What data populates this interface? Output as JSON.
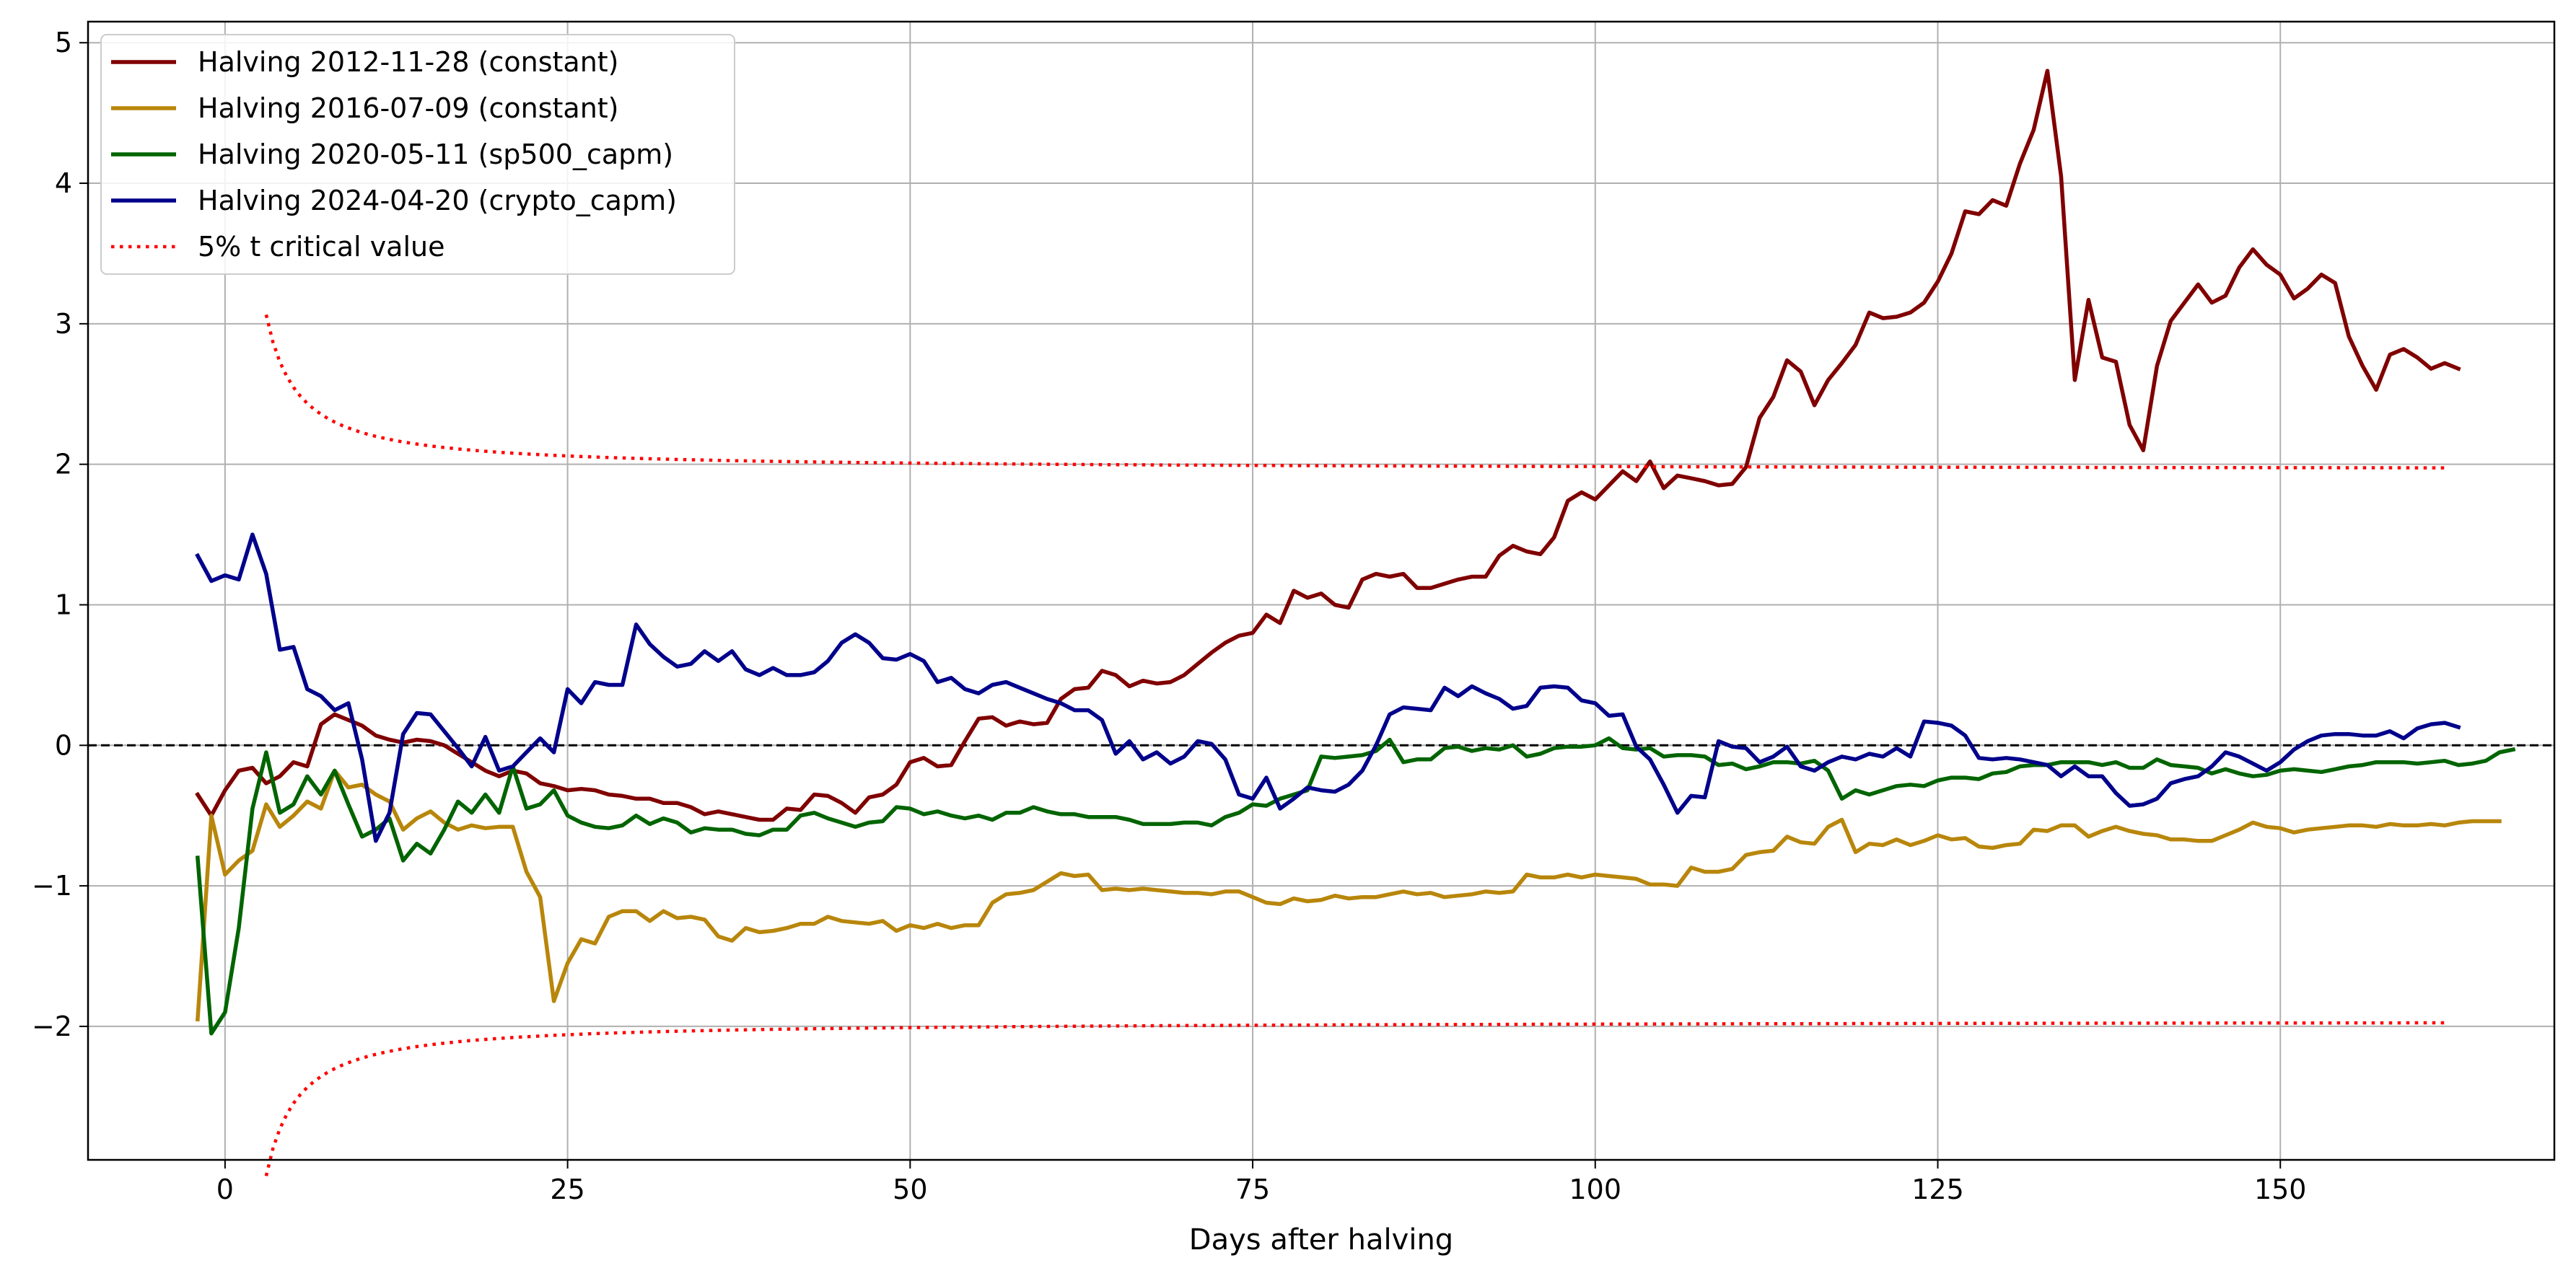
{
  "chart_data": {
    "type": "line",
    "title": "",
    "xlabel": "Days after halving",
    "ylabel": "",
    "xlim": [
      -10,
      170
    ],
    "ylim": [
      -2.95,
      5.15
    ],
    "xticks": [
      0,
      25,
      50,
      75,
      100,
      125,
      150
    ],
    "yticks": [
      -2,
      -1,
      0,
      1,
      2,
      3,
      4,
      5
    ],
    "tick_labels_x": [
      "0",
      "25",
      "50",
      "75",
      "100",
      "125",
      "150"
    ],
    "tick_labels_y": [
      "−2",
      "−1",
      "0",
      "1",
      "2",
      "3",
      "4",
      "5"
    ],
    "grid": true,
    "legend_position": "top-left",
    "zero_line": {
      "y": 0,
      "color": "#000000",
      "style": "dashed"
    },
    "series": [
      {
        "name": "Halving 2012-11-28 (constant)",
        "color": "#800000",
        "style": "solid",
        "x_start": -2,
        "values": [
          -0.35,
          -0.5,
          -0.32,
          -0.18,
          -0.16,
          -0.27,
          -0.22,
          -0.12,
          -0.15,
          0.15,
          0.22,
          0.18,
          0.14,
          0.07,
          0.04,
          0.02,
          0.04,
          0.03,
          0.0,
          -0.06,
          -0.12,
          -0.18,
          -0.22,
          -0.18,
          -0.2,
          -0.27,
          -0.29,
          -0.32,
          -0.31,
          -0.32,
          -0.35,
          -0.36,
          -0.38,
          -0.38,
          -0.41,
          -0.41,
          -0.44,
          -0.49,
          -0.47,
          -0.49,
          -0.51,
          -0.53,
          -0.53,
          -0.45,
          -0.46,
          -0.35,
          -0.36,
          -0.41,
          -0.48,
          -0.37,
          -0.35,
          -0.28,
          -0.12,
          -0.09,
          -0.15,
          -0.14,
          0.03,
          0.19,
          0.2,
          0.14,
          0.17,
          0.15,
          0.16,
          0.33,
          0.4,
          0.41,
          0.53,
          0.5,
          0.42,
          0.46,
          0.44,
          0.45,
          0.5,
          0.58,
          0.66,
          0.73,
          0.78,
          0.8,
          0.93,
          0.87,
          1.1,
          1.05,
          1.08,
          1.0,
          0.98,
          1.18,
          1.22,
          1.2,
          1.22,
          1.12,
          1.12,
          1.15,
          1.18,
          1.2,
          1.2,
          1.35,
          1.42,
          1.38,
          1.36,
          1.48,
          1.74,
          1.8,
          1.75,
          1.85,
          1.95,
          1.88,
          2.02,
          1.83,
          1.92,
          1.9,
          1.88,
          1.85,
          1.86,
          1.98,
          2.33,
          2.48,
          2.74,
          2.66,
          2.42,
          2.6,
          2.72,
          2.85,
          3.08,
          3.04,
          3.05,
          3.08,
          3.15,
          3.3,
          3.5,
          3.8,
          3.78,
          3.88,
          3.84,
          4.14,
          4.38,
          4.8,
          4.05,
          2.6,
          3.17,
          2.76,
          2.73,
          2.28,
          2.1,
          2.7,
          3.02,
          3.15,
          3.28,
          3.15,
          3.2,
          3.4,
          3.53,
          3.42,
          3.35,
          3.18,
          3.25,
          3.35,
          3.29,
          2.91,
          2.7,
          2.53,
          2.78,
          2.82,
          2.76,
          2.68,
          2.72,
          2.68
        ]
      },
      {
        "name": "Halving 2016-07-09 (constant)",
        "color": "#b8860b",
        "style": "solid",
        "x_start": -2,
        "values": [
          -1.95,
          -0.5,
          -0.92,
          -0.82,
          -0.75,
          -0.42,
          -0.58,
          -0.5,
          -0.4,
          -0.45,
          -0.18,
          -0.3,
          -0.28,
          -0.35,
          -0.4,
          -0.6,
          -0.52,
          -0.47,
          -0.55,
          -0.6,
          -0.57,
          -0.59,
          -0.58,
          -0.58,
          -0.9,
          -1.08,
          -1.82,
          -1.55,
          -1.38,
          -1.41,
          -1.22,
          -1.18,
          -1.18,
          -1.25,
          -1.18,
          -1.23,
          -1.22,
          -1.24,
          -1.36,
          -1.39,
          -1.3,
          -1.33,
          -1.32,
          -1.3,
          -1.27,
          -1.27,
          -1.22,
          -1.25,
          -1.26,
          -1.27,
          -1.25,
          -1.32,
          -1.28,
          -1.3,
          -1.27,
          -1.3,
          -1.28,
          -1.28,
          -1.12,
          -1.06,
          -1.05,
          -1.03,
          -0.97,
          -0.91,
          -0.93,
          -0.92,
          -1.03,
          -1.02,
          -1.03,
          -1.02,
          -1.03,
          -1.04,
          -1.05,
          -1.05,
          -1.06,
          -1.04,
          -1.04,
          -1.08,
          -1.12,
          -1.13,
          -1.09,
          -1.11,
          -1.1,
          -1.07,
          -1.09,
          -1.08,
          -1.08,
          -1.06,
          -1.04,
          -1.06,
          -1.05,
          -1.08,
          -1.07,
          -1.06,
          -1.04,
          -1.05,
          -1.04,
          -0.92,
          -0.94,
          -0.94,
          -0.92,
          -0.94,
          -0.92,
          -0.93,
          -0.94,
          -0.95,
          -0.99,
          -0.99,
          -1.0,
          -0.87,
          -0.9,
          -0.9,
          -0.88,
          -0.78,
          -0.76,
          -0.75,
          -0.65,
          -0.69,
          -0.7,
          -0.58,
          -0.53,
          -0.76,
          -0.7,
          -0.71,
          -0.67,
          -0.71,
          -0.68,
          -0.64,
          -0.67,
          -0.66,
          -0.72,
          -0.73,
          -0.71,
          -0.7,
          -0.6,
          -0.61,
          -0.57,
          -0.57,
          -0.65,
          -0.61,
          -0.58,
          -0.61,
          -0.63,
          -0.64,
          -0.67,
          -0.67,
          -0.68,
          -0.68,
          -0.64,
          -0.6,
          -0.55,
          -0.58,
          -0.59,
          -0.62,
          -0.6,
          -0.59,
          -0.58,
          -0.57,
          -0.57,
          -0.58,
          -0.56,
          -0.57,
          -0.57,
          -0.56,
          -0.57,
          -0.55,
          -0.54,
          -0.54,
          -0.54
        ]
      },
      {
        "name": "Halving 2020-05-11 (sp500_capm)",
        "color": "#006400",
        "style": "solid",
        "x_start": -2,
        "values": [
          -0.8,
          -2.05,
          -1.9,
          -1.3,
          -0.45,
          -0.05,
          -0.48,
          -0.42,
          -0.22,
          -0.35,
          -0.18,
          -0.42,
          -0.65,
          -0.6,
          -0.52,
          -0.82,
          -0.7,
          -0.77,
          -0.6,
          -0.4,
          -0.48,
          -0.35,
          -0.48,
          -0.15,
          -0.45,
          -0.42,
          -0.32,
          -0.5,
          -0.55,
          -0.58,
          -0.59,
          -0.57,
          -0.5,
          -0.56,
          -0.52,
          -0.55,
          -0.62,
          -0.59,
          -0.6,
          -0.6,
          -0.63,
          -0.64,
          -0.6,
          -0.6,
          -0.5,
          -0.48,
          -0.52,
          -0.55,
          -0.58,
          -0.55,
          -0.54,
          -0.44,
          -0.45,
          -0.49,
          -0.47,
          -0.5,
          -0.52,
          -0.5,
          -0.53,
          -0.48,
          -0.48,
          -0.44,
          -0.47,
          -0.49,
          -0.49,
          -0.51,
          -0.51,
          -0.51,
          -0.53,
          -0.56,
          -0.56,
          -0.56,
          -0.55,
          -0.55,
          -0.57,
          -0.51,
          -0.48,
          -0.42,
          -0.43,
          -0.38,
          -0.35,
          -0.32,
          -0.08,
          -0.09,
          -0.08,
          -0.07,
          -0.04,
          0.04,
          -0.12,
          -0.1,
          -0.1,
          -0.02,
          -0.01,
          -0.04,
          -0.02,
          -0.03,
          0.0,
          -0.08,
          -0.06,
          -0.02,
          -0.01,
          -0.01,
          0.0,
          0.05,
          -0.02,
          -0.03,
          -0.02,
          -0.08,
          -0.07,
          -0.07,
          -0.08,
          -0.14,
          -0.13,
          -0.17,
          -0.15,
          -0.12,
          -0.12,
          -0.13,
          -0.11,
          -0.18,
          -0.38,
          -0.32,
          -0.35,
          -0.32,
          -0.29,
          -0.28,
          -0.29,
          -0.25,
          -0.23,
          -0.23,
          -0.24,
          -0.2,
          -0.19,
          -0.15,
          -0.14,
          -0.14,
          -0.12,
          -0.12,
          -0.12,
          -0.14,
          -0.12,
          -0.16,
          -0.16,
          -0.1,
          -0.14,
          -0.15,
          -0.16,
          -0.2,
          -0.17,
          -0.2,
          -0.22,
          -0.21,
          -0.18,
          -0.17,
          -0.18,
          -0.19,
          -0.17,
          -0.15,
          -0.14,
          -0.12,
          -0.12,
          -0.12,
          -0.13,
          -0.12,
          -0.11,
          -0.14,
          -0.13,
          -0.11,
          -0.05,
          -0.03
        ]
      },
      {
        "name": "Halving 2024-04-20 (crypto_capm)",
        "color": "#00008b",
        "style": "solid",
        "x_start": -2,
        "values": [
          1.35,
          1.17,
          1.21,
          1.18,
          1.5,
          1.22,
          0.68,
          0.7,
          0.4,
          0.35,
          0.25,
          0.3,
          -0.1,
          -0.68,
          -0.48,
          0.08,
          0.23,
          0.22,
          0.1,
          -0.02,
          -0.15,
          0.06,
          -0.18,
          -0.15,
          -0.05,
          0.05,
          -0.05,
          0.4,
          0.3,
          0.45,
          0.43,
          0.43,
          0.86,
          0.72,
          0.63,
          0.56,
          0.58,
          0.67,
          0.6,
          0.67,
          0.54,
          0.5,
          0.55,
          0.5,
          0.5,
          0.52,
          0.6,
          0.73,
          0.79,
          0.73,
          0.62,
          0.61,
          0.65,
          0.6,
          0.45,
          0.48,
          0.4,
          0.37,
          0.43,
          0.45,
          0.41,
          0.37,
          0.33,
          0.3,
          0.25,
          0.25,
          0.18,
          -0.06,
          0.03,
          -0.1,
          -0.05,
          -0.13,
          -0.08,
          0.03,
          0.01,
          -0.1,
          -0.35,
          -0.38,
          -0.23,
          -0.45,
          -0.38,
          -0.3,
          -0.32,
          -0.33,
          -0.28,
          -0.18,
          0.0,
          0.22,
          0.27,
          0.26,
          0.25,
          0.41,
          0.35,
          0.42,
          0.37,
          0.33,
          0.26,
          0.28,
          0.41,
          0.42,
          0.41,
          0.32,
          0.3,
          0.21,
          0.22,
          -0.01,
          -0.1,
          -0.28,
          -0.48,
          -0.36,
          -0.37,
          0.03,
          -0.01,
          -0.02,
          -0.12,
          -0.08,
          -0.01,
          -0.15,
          -0.18,
          -0.12,
          -0.08,
          -0.1,
          -0.06,
          -0.08,
          -0.02,
          -0.08,
          0.17,
          0.16,
          0.14,
          0.07,
          -0.09,
          -0.1,
          -0.09,
          -0.1,
          -0.12,
          -0.14,
          -0.22,
          -0.15,
          -0.22,
          -0.22,
          -0.34,
          -0.43,
          -0.42,
          -0.38,
          -0.27,
          -0.24,
          -0.22,
          -0.15,
          -0.05,
          -0.08,
          -0.13,
          -0.18,
          -0.12,
          -0.03,
          0.03,
          0.07,
          0.08,
          0.08,
          0.07,
          0.07,
          0.1,
          0.05,
          0.12,
          0.15,
          0.16,
          0.13
        ]
      },
      {
        "name": "5% t critical value",
        "color": "#ff0000",
        "style": "dotted",
        "critical": true,
        "x_start": 3,
        "x_end": 162
      }
    ]
  }
}
